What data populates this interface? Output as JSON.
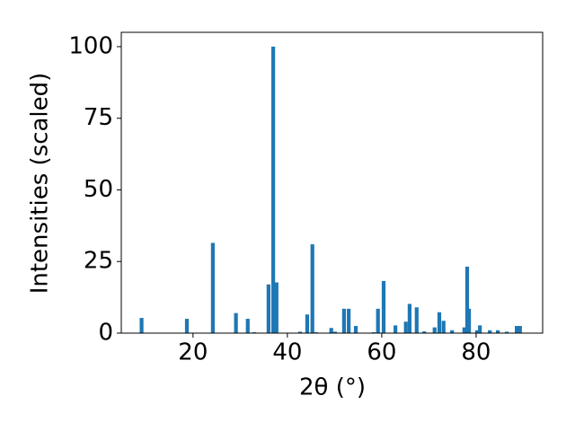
{
  "chart_data": {
    "type": "bar",
    "xlabel": "2θ (°)",
    "ylabel": "Intensities (scaled)",
    "color": "#1f77b4",
    "x": [
      9.1,
      18.7,
      24.2,
      29.1,
      31.6,
      33.0,
      36.0,
      37.0,
      37.7,
      42.7,
      44.2,
      45.3,
      46.1,
      49.3,
      50.1,
      52.0,
      53.0,
      54.5,
      58.3,
      59.2,
      60.4,
      62.9,
      65.1,
      65.9,
      67.4,
      69.0,
      71.2,
      72.2,
      73.1,
      74.9,
      77.5,
      78.1,
      78.5,
      80.2,
      80.8,
      82.9,
      84.6,
      86.5,
      88.6,
      89.3
    ],
    "values": [
      5.3,
      5,
      31.5,
      7,
      5,
      0.3,
      17,
      100,
      17.7,
      0.5,
      6.5,
      31,
      0.3,
      1.8,
      0.5,
      8.5,
      8.5,
      2.5,
      0.3,
      8.5,
      18.2,
      2.7,
      4,
      10.2,
      9,
      0.6,
      2,
      7.3,
      4.3,
      1,
      2,
      23.2,
      8.5,
      1,
      2.7,
      1,
      1,
      0.5,
      2.5,
      2.5
    ],
    "xlim": [
      4.8,
      94.1
    ],
    "ylim": [
      0,
      105
    ],
    "xticks": [
      20,
      40,
      60,
      80
    ],
    "yticks": [
      0,
      25,
      50,
      75,
      100
    ]
  }
}
